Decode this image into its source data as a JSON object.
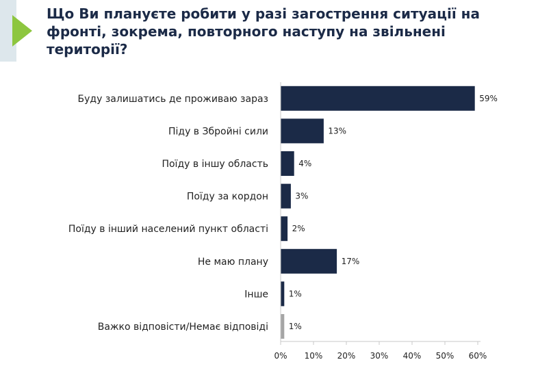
{
  "title_lines": [
    "Що Ви плануєте робити у разі загострення ситуації на",
    "фронті, зокрема, повторного наступу на звільнені",
    "території?"
  ],
  "colors": {
    "title": "#1b2a47",
    "accent_arrow": "#8dc63f",
    "accent_panel": "#dde7ec",
    "bar_primary": "#1b2a47",
    "bar_secondary": "#a5a5a5",
    "axis": "#c8c8c8",
    "text": "#1f1f1f"
  },
  "icons": {
    "accent": "play-arrow-icon"
  },
  "chart_data": {
    "type": "bar",
    "orientation": "horizontal",
    "title": "Що Ви плануєте робити у разі загострення ситуації на фронті, зокрема, повторного наступу на звільнені території?",
    "categories": [
      "Буду залишатись де проживаю зараз",
      "Піду в Збройні сили",
      "Поїду в іншу область",
      "Поїду за кордон",
      "Поїду в інший населений пункт області",
      "Не маю плану",
      "Інше",
      "Важко відповісти/Немає відповіді"
    ],
    "values": [
      59,
      13,
      4,
      3,
      2,
      17,
      1,
      1
    ],
    "value_labels": [
      "59%",
      "13%",
      "4%",
      "3%",
      "2%",
      "17%",
      "1%",
      "1%"
    ],
    "bar_colors": [
      "#1b2a47",
      "#1b2a47",
      "#1b2a47",
      "#1b2a47",
      "#1b2a47",
      "#1b2a47",
      "#1b2a47",
      "#a5a5a5"
    ],
    "xlim": [
      0,
      60
    ],
    "x_ticks": [
      0,
      10,
      20,
      30,
      40,
      50,
      60
    ],
    "x_tick_labels": [
      "0%",
      "10%",
      "20%",
      "30%",
      "40%",
      "50%",
      "60%"
    ],
    "xlabel": "",
    "ylabel": "",
    "grid": false,
    "legend": false
  }
}
